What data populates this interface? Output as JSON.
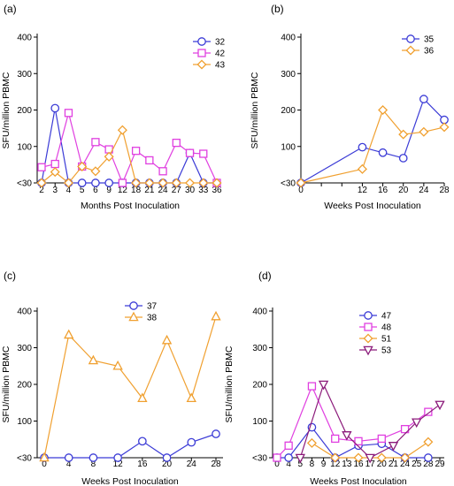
{
  "chart_data": [
    {
      "panel_label": "(a)",
      "type": "line",
      "x_kind": "category",
      "categories": [
        "2",
        "3",
        "4",
        "5",
        "6",
        "9",
        "12",
        "18",
        "21",
        "24",
        "27",
        "30",
        "33",
        "36"
      ],
      "xlabel": "Months Post Inoculation",
      "ylabel": "SFU/million PBMC",
      "yticks": [
        "<30",
        "100",
        "200",
        "300",
        "400"
      ],
      "ylim": [
        0,
        400
      ],
      "legend_position": "top-right",
      "series": [
        {
          "name": "32",
          "color": "#3b3bd6",
          "marker": "circle",
          "values": [
            0,
            205,
            0,
            0,
            0,
            0,
            0,
            0,
            0,
            0,
            0,
            82,
            0,
            0
          ]
        },
        {
          "name": "42",
          "color": "#e040e0",
          "marker": "square",
          "values": [
            43,
            52,
            192,
            45,
            112,
            92,
            0,
            88,
            62,
            32,
            110,
            82,
            80,
            0
          ]
        },
        {
          "name": "43",
          "color": "#f0a030",
          "marker": "diamond",
          "values": [
            0,
            30,
            0,
            45,
            32,
            72,
            145,
            0,
            0,
            0,
            0,
            0,
            0,
            0
          ]
        }
      ]
    },
    {
      "panel_label": "(b)",
      "type": "line",
      "x_kind": "numeric",
      "xticks": [
        0,
        4,
        8,
        12,
        16,
        20,
        24,
        28
      ],
      "xtick_labels": [
        "0",
        "",
        "",
        "12",
        "16",
        "20",
        "24",
        "28"
      ],
      "xlim": [
        0,
        28
      ],
      "xlabel": "Weeks Post Inoculation",
      "ylabel": "SFU/million PBMC",
      "yticks": [
        "<30",
        "100",
        "200",
        "300",
        "400"
      ],
      "ylim": [
        0,
        400
      ],
      "legend_position": "top-right",
      "series": [
        {
          "name": "35",
          "color": "#3b3bd6",
          "marker": "circle",
          "x": [
            0,
            12,
            16,
            20,
            24,
            28
          ],
          "values": [
            0,
            98,
            83,
            68,
            230,
            173
          ]
        },
        {
          "name": "36",
          "color": "#f0a030",
          "marker": "diamond",
          "x": [
            0,
            12,
            16,
            20,
            24,
            28
          ],
          "values": [
            0,
            38,
            200,
            133,
            140,
            153
          ]
        }
      ]
    },
    {
      "panel_label": "(c)",
      "type": "line",
      "x_kind": "numeric",
      "xticks": [
        0,
        4,
        8,
        12,
        16,
        20,
        24,
        28
      ],
      "xtick_labels": [
        "0",
        "4",
        "8",
        "12",
        "16",
        "20",
        "24",
        "28"
      ],
      "xlim": [
        0,
        28
      ],
      "xlabel": "Weeks Post Inoculation",
      "ylabel": "SFU/million PBMC",
      "yticks": [
        "<30",
        "100",
        "200",
        "300",
        "400"
      ],
      "ylim": [
        0,
        400
      ],
      "legend_position": "top-left",
      "series": [
        {
          "name": "37",
          "color": "#3b3bd6",
          "marker": "circle",
          "x": [
            0,
            4,
            8,
            12,
            16,
            20,
            24,
            28
          ],
          "values": [
            0,
            0,
            0,
            0,
            45,
            0,
            42,
            65
          ]
        },
        {
          "name": "38",
          "color": "#f0a030",
          "marker": "triangle-up",
          "x": [
            0,
            4,
            8,
            12,
            16,
            20,
            24,
            28
          ],
          "values": [
            0,
            335,
            265,
            250,
            162,
            320,
            162,
            385
          ]
        }
      ]
    },
    {
      "panel_label": "(d)",
      "type": "line",
      "x_kind": "category",
      "categories": [
        "0",
        "4",
        "5",
        "8",
        "9",
        "12",
        "13",
        "16",
        "17",
        "20",
        "21",
        "24",
        "25",
        "28",
        "29"
      ],
      "xlabel": "Weeks Post Inoculation",
      "ylabel": "SFU/million PBMC",
      "yticks": [
        "<30",
        "100",
        "200",
        "300",
        "400"
      ],
      "ylim": [
        0,
        400
      ],
      "legend_position": "top-right",
      "series": [
        {
          "name": "47",
          "color": "#3b3bd6",
          "marker": "circle",
          "x": [
            "0",
            "4",
            "8",
            "12",
            "16",
            "20",
            "24",
            "28"
          ],
          "values": [
            0,
            0,
            83,
            0,
            33,
            38,
            0,
            0
          ]
        },
        {
          "name": "48",
          "color": "#e040e0",
          "marker": "square",
          "x": [
            "0",
            "4",
            "8",
            "12",
            "16",
            "20",
            "24",
            "28"
          ],
          "values": [
            0,
            33,
            195,
            52,
            45,
            52,
            78,
            125
          ]
        },
        {
          "name": "51",
          "color": "#f0a030",
          "marker": "diamond",
          "x": [
            "8",
            "12",
            "16",
            "20",
            "24",
            "28"
          ],
          "values": [
            40,
            0,
            0,
            0,
            0,
            43
          ]
        },
        {
          "name": "53",
          "color": "#8b1a7a",
          "marker": "triangle-down",
          "x": [
            "5",
            "9",
            "13",
            "17",
            "21",
            "25",
            "29"
          ],
          "values": [
            0,
            200,
            62,
            0,
            33,
            97,
            145
          ]
        }
      ]
    }
  ]
}
